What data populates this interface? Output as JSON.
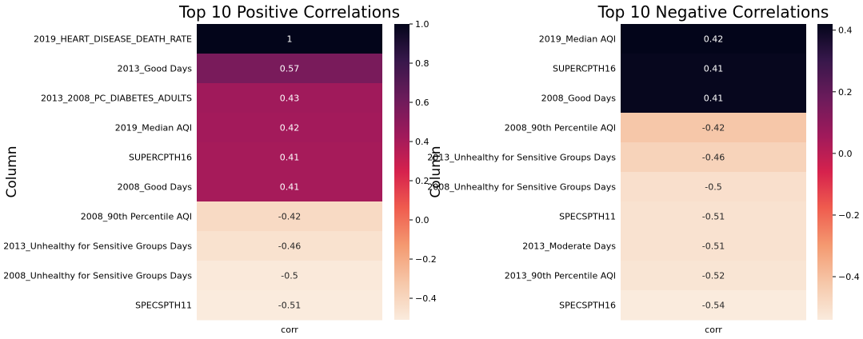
{
  "figure": {
    "charts": [
      {
        "title": "Top 10 Positive Correlations",
        "ylabel": "Column",
        "xlabel": "corr"
      },
      {
        "title": "Top 10 Negative Correlations",
        "ylabel": "Column",
        "xlabel": "corr"
      }
    ]
  },
  "chart_data": [
    {
      "type": "heatmap",
      "title": "Top 10 Positive Correlations",
      "ylabel": "Column",
      "xlabel": "",
      "x_categories": [
        "corr"
      ],
      "y_categories": [
        "2019_HEART_DISEASE_DEATH_RATE",
        "2013_Good Days",
        "2013_2008_PC_DIABETES_ADULTS",
        "2019_Median AQI",
        "SUPERCPTH16",
        "2008_Good Days",
        "2008_90th Percentile AQI",
        "2013_Unhealthy for Sensitive Groups Days",
        "2008_Unhealthy for Sensitive Groups Days",
        "SPECSPTH11"
      ],
      "values": [
        1,
        0.57,
        0.43,
        0.42,
        0.41,
        0.41,
        -0.42,
        -0.46,
        -0.5,
        -0.51
      ],
      "labels": [
        "1",
        "0.57",
        "0.43",
        "0.42",
        "0.41",
        "0.41",
        "-0.42",
        "-0.46",
        "-0.5",
        "-0.51"
      ],
      "colorbar": {
        "range": [
          -0.51,
          1
        ],
        "ticks": [
          1.0,
          0.8,
          0.6,
          0.4,
          0.2,
          0.0,
          -0.2,
          -0.4
        ],
        "tick_labels": [
          "1.0",
          "0.8",
          "0.6",
          "0.4",
          "0.2",
          "0.0",
          "−0.2",
          "−0.4"
        ],
        "colormap": "rocket"
      }
    },
    {
      "type": "heatmap",
      "title": "Top 10 Negative Correlations",
      "ylabel": "Column",
      "xlabel": "",
      "x_categories": [
        "corr"
      ],
      "y_categories": [
        "2019_Median AQI",
        "SUPERCPTH16",
        "2008_Good Days",
        "2008_90th Percentile AQI",
        "2013_Unhealthy for Sensitive Groups Days",
        "2008_Unhealthy for Sensitive Groups Days",
        "SPECSPTH11",
        "2013_Moderate Days",
        "2013_90th Percentile AQI",
        "SPECSPTH16"
      ],
      "values": [
        0.42,
        0.41,
        0.41,
        -0.42,
        -0.46,
        -0.5,
        -0.51,
        -0.51,
        -0.52,
        -0.54
      ],
      "labels": [
        "0.42",
        "0.41",
        "0.41",
        "-0.42",
        "-0.46",
        "-0.5",
        "-0.51",
        "-0.51",
        "-0.52",
        "-0.54"
      ],
      "colorbar": {
        "range": [
          -0.54,
          0.42
        ],
        "ticks": [
          0.4,
          0.2,
          0.0,
          -0.2,
          -0.4
        ],
        "tick_labels": [
          "0.4",
          "0.2",
          "0.0",
          "−0.2",
          "−0.4"
        ],
        "colormap": "rocket"
      }
    }
  ]
}
